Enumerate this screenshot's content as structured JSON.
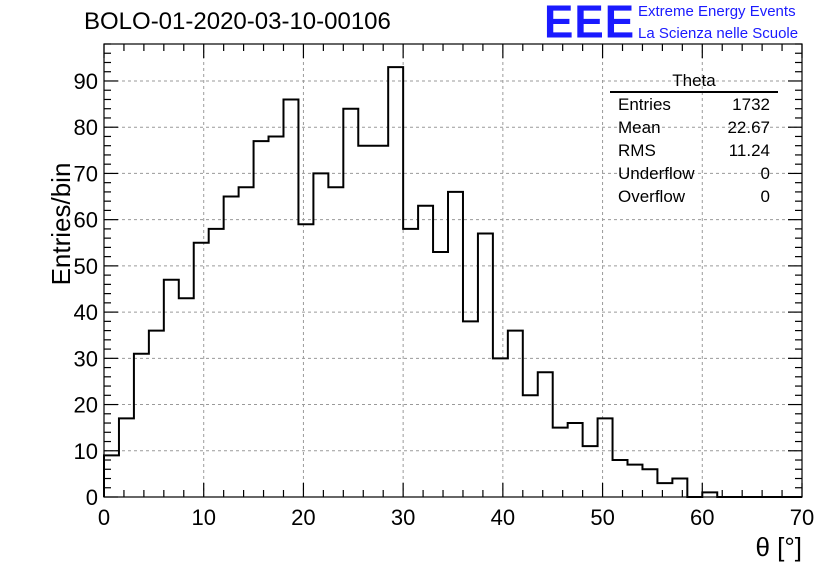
{
  "header": {
    "run_title": "BOLO-01-2020-03-10-00106",
    "logo_text": "EEE",
    "brand_line1": "Extreme Energy Events",
    "brand_line2": "La Scienza nelle Scuole",
    "brand_color": "#1a1aff"
  },
  "stats_box": {
    "title": "Theta",
    "rows": [
      {
        "label": "Entries",
        "value": "1732"
      },
      {
        "label": "Mean",
        "value": "22.67"
      },
      {
        "label": "RMS",
        "value": "11.24"
      },
      {
        "label": "Underflow",
        "value": "0"
      },
      {
        "label": "Overflow",
        "value": "0"
      }
    ]
  },
  "chart_data": {
    "type": "histogram",
    "xlabel": "θ [°]",
    "ylabel": "Entries/bin",
    "xlim": [
      0,
      70
    ],
    "ylim": [
      0,
      98
    ],
    "grid": true,
    "x_ticks": [
      0,
      10,
      20,
      30,
      40,
      50,
      60,
      70
    ],
    "x_tick_labels": [
      "0",
      "10",
      "20",
      "30",
      "40",
      "50",
      "60",
      "70"
    ],
    "y_ticks": [
      0,
      10,
      20,
      30,
      40,
      50,
      60,
      70,
      80,
      90
    ],
    "y_tick_labels": [
      "0",
      "10",
      "20",
      "30",
      "40",
      "50",
      "60",
      "70",
      "80",
      "90"
    ],
    "bin_edges": [
      0,
      1.5,
      3,
      4.5,
      6,
      7.5,
      9,
      10.5,
      12,
      13.5,
      15,
      16.5,
      18,
      19.5,
      21,
      22.5,
      24,
      25.5,
      27,
      28.5,
      30,
      31.5,
      33,
      34.5,
      36,
      37.5,
      39,
      40.5,
      42,
      43.5,
      45,
      46.5,
      48,
      49.5,
      51,
      52.5,
      54,
      55.5,
      57,
      58.5,
      60,
      61.5,
      63,
      64.5,
      66,
      67.5,
      69,
      70
    ],
    "values": [
      9,
      17,
      31,
      36,
      47,
      43,
      55,
      58,
      65,
      67,
      77,
      78,
      86,
      59,
      70,
      67,
      84,
      76,
      76,
      93,
      58,
      63,
      53,
      66,
      38,
      57,
      30,
      36,
      22,
      27,
      15,
      16,
      11,
      17,
      8,
      7,
      6,
      3,
      4,
      0,
      1,
      0,
      0,
      0,
      0,
      0,
      0
    ],
    "line_color": "#000000"
  }
}
